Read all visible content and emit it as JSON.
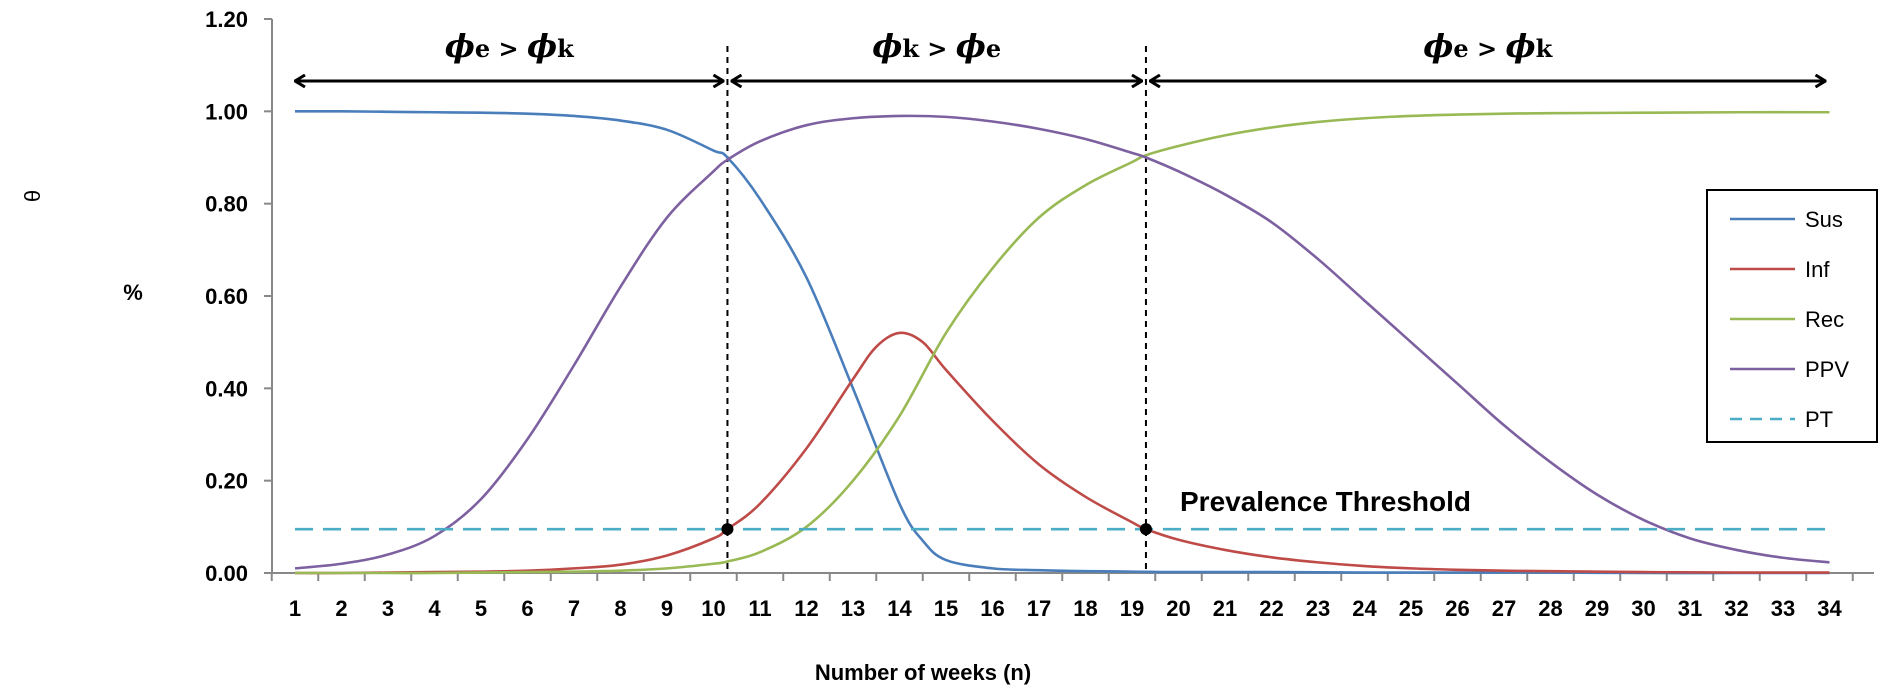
{
  "chart_data": {
    "type": "line",
    "xlabel": "Number of weeks (n)",
    "ylabel": "%",
    "side_glyph": "θ",
    "xlim": [
      1,
      34
    ],
    "ylim": [
      0,
      1.2
    ],
    "x_ticks": [
      1,
      2,
      3,
      4,
      5,
      6,
      7,
      8,
      9,
      10,
      11,
      12,
      13,
      14,
      15,
      16,
      17,
      18,
      19,
      20,
      21,
      22,
      23,
      24,
      25,
      26,
      27,
      28,
      29,
      30,
      31,
      32,
      33,
      34
    ],
    "y_ticks": [
      "0.00",
      "0.20",
      "0.40",
      "0.60",
      "0.80",
      "1.00",
      "1.20"
    ],
    "grid": false,
    "legend_position": "right",
    "series": [
      {
        "name": "Sus",
        "color": "#4a7ebb",
        "dash": false,
        "points": [
          [
            1,
            1.0
          ],
          [
            2,
            1.0
          ],
          [
            3,
            0.999
          ],
          [
            4,
            0.998
          ],
          [
            5,
            0.997
          ],
          [
            6,
            0.995
          ],
          [
            7,
            0.99
          ],
          [
            8,
            0.98
          ],
          [
            9,
            0.96
          ],
          [
            10,
            0.915
          ],
          [
            10.3,
            0.9
          ],
          [
            11,
            0.81
          ],
          [
            12,
            0.64
          ],
          [
            13,
            0.4
          ],
          [
            14,
            0.15
          ],
          [
            14.5,
            0.07
          ],
          [
            15,
            0.028
          ],
          [
            16,
            0.01
          ],
          [
            17,
            0.006
          ],
          [
            18,
            0.004
          ],
          [
            19,
            0.003
          ],
          [
            20,
            0.002
          ],
          [
            22,
            0.002
          ],
          [
            24,
            0.001
          ],
          [
            26,
            0.001
          ],
          [
            28,
            0.001
          ],
          [
            30,
            0.0
          ],
          [
            32,
            0.0
          ],
          [
            34,
            0.0
          ]
        ]
      },
      {
        "name": "Inf",
        "color": "#be4b48",
        "dash": false,
        "points": [
          [
            1,
            0.0
          ],
          [
            2,
            0.0
          ],
          [
            3,
            0.001
          ],
          [
            4,
            0.002
          ],
          [
            5,
            0.003
          ],
          [
            6,
            0.005
          ],
          [
            7,
            0.01
          ],
          [
            8,
            0.018
          ],
          [
            9,
            0.038
          ],
          [
            10,
            0.075
          ],
          [
            10.3,
            0.095
          ],
          [
            11,
            0.15
          ],
          [
            12,
            0.27
          ],
          [
            13,
            0.42
          ],
          [
            13.5,
            0.49
          ],
          [
            14,
            0.52
          ],
          [
            14.5,
            0.5
          ],
          [
            15,
            0.44
          ],
          [
            16,
            0.33
          ],
          [
            17,
            0.235
          ],
          [
            18,
            0.165
          ],
          [
            19,
            0.11
          ],
          [
            19.3,
            0.095
          ],
          [
            20,
            0.072
          ],
          [
            21,
            0.05
          ],
          [
            22,
            0.034
          ],
          [
            23,
            0.023
          ],
          [
            24,
            0.015
          ],
          [
            25,
            0.01
          ],
          [
            26,
            0.007
          ],
          [
            27,
            0.005
          ],
          [
            28,
            0.004
          ],
          [
            30,
            0.002
          ],
          [
            32,
            0.001
          ],
          [
            34,
            0.001
          ]
        ]
      },
      {
        "name": "Rec",
        "color": "#98b954",
        "dash": false,
        "points": [
          [
            1,
            0.0
          ],
          [
            2,
            0.0
          ],
          [
            3,
            0.0
          ],
          [
            4,
            0.0
          ],
          [
            5,
            0.001
          ],
          [
            6,
            0.002
          ],
          [
            7,
            0.003
          ],
          [
            8,
            0.005
          ],
          [
            9,
            0.01
          ],
          [
            10,
            0.02
          ],
          [
            10.3,
            0.025
          ],
          [
            11,
            0.045
          ],
          [
            12,
            0.1
          ],
          [
            13,
            0.2
          ],
          [
            14,
            0.34
          ],
          [
            15,
            0.52
          ],
          [
            16,
            0.66
          ],
          [
            17,
            0.77
          ],
          [
            18,
            0.84
          ],
          [
            19,
            0.89
          ],
          [
            19.3,
            0.905
          ],
          [
            20,
            0.925
          ],
          [
            21,
            0.948
          ],
          [
            22,
            0.965
          ],
          [
            23,
            0.977
          ],
          [
            24,
            0.985
          ],
          [
            25,
            0.99
          ],
          [
            26,
            0.993
          ],
          [
            27,
            0.995
          ],
          [
            28,
            0.996
          ],
          [
            30,
            0.997
          ],
          [
            32,
            0.998
          ],
          [
            34,
            0.998
          ]
        ]
      },
      {
        "name": "PPV",
        "color": "#7d60a0",
        "dash": false,
        "points": [
          [
            1,
            0.01
          ],
          [
            2,
            0.02
          ],
          [
            3,
            0.04
          ],
          [
            4,
            0.08
          ],
          [
            5,
            0.16
          ],
          [
            6,
            0.29
          ],
          [
            7,
            0.45
          ],
          [
            8,
            0.62
          ],
          [
            9,
            0.77
          ],
          [
            10,
            0.87
          ],
          [
            10.3,
            0.895
          ],
          [
            11,
            0.935
          ],
          [
            12,
            0.97
          ],
          [
            13,
            0.985
          ],
          [
            14,
            0.99
          ],
          [
            15,
            0.988
          ],
          [
            16,
            0.978
          ],
          [
            17,
            0.962
          ],
          [
            18,
            0.94
          ],
          [
            19,
            0.91
          ],
          [
            19.3,
            0.9
          ],
          [
            20,
            0.87
          ],
          [
            21,
            0.82
          ],
          [
            22,
            0.76
          ],
          [
            23,
            0.68
          ],
          [
            24,
            0.59
          ],
          [
            25,
            0.5
          ],
          [
            26,
            0.41
          ],
          [
            27,
            0.32
          ],
          [
            28,
            0.24
          ],
          [
            29,
            0.17
          ],
          [
            30,
            0.115
          ],
          [
            31,
            0.075
          ],
          [
            32,
            0.05
          ],
          [
            33,
            0.033
          ],
          [
            34,
            0.023
          ]
        ]
      },
      {
        "name": "PT",
        "color": "#4bacc6",
        "dash": true,
        "points": [
          [
            1,
            0.095
          ],
          [
            34,
            0.095
          ]
        ]
      }
    ],
    "vertical_lines": [
      10.3,
      19.3
    ],
    "intersection_points": [
      [
        10.3,
        0.095
      ],
      [
        19.3,
        0.095
      ]
    ],
    "threshold_label": "Prevalence Threshold",
    "phases": [
      {
        "left": "ϕ",
        "left_sub": "e",
        "op": ">",
        "right": "ϕ",
        "right_sub": "k",
        "from": 1,
        "to": 10.3
      },
      {
        "left": "ϕ",
        "left_sub": "k",
        "op": ">",
        "right": "ϕ",
        "right_sub": "e",
        "from": 10.3,
        "to": 19.3
      },
      {
        "left": "ϕ",
        "left_sub": "e",
        "op": ">",
        "right": "ϕ",
        "right_sub": "k",
        "from": 19.3,
        "to": 34
      }
    ]
  }
}
